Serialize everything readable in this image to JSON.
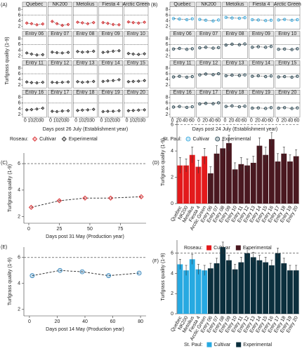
{
  "chart_data": [
    {
      "type": "facet-line",
      "tag": "(A)",
      "y_label": "Turfgrass quality (1-9)",
      "x_label": "Days post 26 July (Establishment year)",
      "x": [
        3,
        12,
        22,
        33
      ],
      "xlim": [
        -5,
        40
      ],
      "xticks": [
        0,
        10,
        20,
        30
      ],
      "ylim": [
        1,
        9
      ],
      "yticks": [
        2,
        4,
        6,
        8
      ],
      "reference_line": 6,
      "legend_title": "Roseau:",
      "marker": "diamond",
      "series": [
        {
          "name": "Cultivar",
          "color": "#d7191c",
          "facets": [
            {
              "name": "Quebec",
              "values": [
                3.2,
                3.0,
                2.6,
                2.9
              ]
            },
            {
              "name": "NK200",
              "values": [
                3.8,
                3.0,
                2.4,
                2.7
              ]
            },
            {
              "name": "Metolius",
              "values": [
                3.5,
                3.3,
                3.0,
                3.4
              ]
            },
            {
              "name": "Fiesta 4",
              "values": [
                3.4,
                3.1,
                2.7,
                2.6
              ]
            },
            {
              "name": "Arctic Green",
              "values": [
                3.6,
                3.4,
                3.2,
                3.5
              ]
            }
          ]
        },
        {
          "name": "Experimental",
          "color": "#1a1a1a",
          "facets": [
            {
              "name": "Entry 06",
              "values": [
                3.0,
                2.6,
                2.3,
                2.4
              ]
            },
            {
              "name": "Entry 07",
              "values": [
                3.3,
                3.1,
                3.0,
                3.2
              ]
            },
            {
              "name": "Entry 08",
              "values": [
                3.5,
                3.3,
                3.4,
                3.6
              ]
            },
            {
              "name": "Entry 09",
              "values": [
                3.2,
                3.4,
                3.6,
                3.8
              ]
            },
            {
              "name": "Entry 10",
              "values": [
                2.8,
                2.6,
                2.5,
                2.7
              ]
            },
            {
              "name": "Entry 11",
              "values": [
                3.1,
                2.9,
                2.8,
                3.0
              ]
            },
            {
              "name": "Entry 12",
              "values": [
                3.0,
                2.9,
                3.0,
                3.1
              ]
            },
            {
              "name": "Entry 13",
              "values": [
                3.2,
                3.0,
                3.1,
                3.3
              ]
            },
            {
              "name": "Entry 14",
              "values": [
                3.3,
                3.5,
                3.6,
                3.9
              ]
            },
            {
              "name": "Entry 15",
              "values": [
                3.2,
                3.3,
                3.4,
                3.6
              ]
            },
            {
              "name": "Entry 16",
              "values": [
                3.6,
                3.7,
                3.9,
                4.2
              ]
            },
            {
              "name": "Entry 17",
              "values": [
                3.1,
                3.0,
                3.2,
                3.3
              ]
            },
            {
              "name": "Entry 18",
              "values": [
                3.4,
                3.5,
                3.6,
                3.8
              ]
            },
            {
              "name": "Entry 19",
              "values": [
                3.0,
                3.1,
                3.1,
                3.3
              ]
            },
            {
              "name": "Entry 20",
              "values": [
                3.3,
                3.4,
                3.5,
                3.6
              ]
            }
          ]
        }
      ]
    },
    {
      "type": "facet-line",
      "tag": "(B)",
      "x_label": "Days post 24 July (Establishment year)",
      "x": [
        3,
        22,
        45,
        62
      ],
      "xlim": [
        -8,
        70
      ],
      "xticks": [
        0,
        20,
        40,
        60
      ],
      "ylim": [
        1,
        9
      ],
      "yticks": [
        2,
        4,
        6,
        8
      ],
      "reference_line": 6,
      "legend_title": "St. Paul:",
      "marker": "circle",
      "series": [
        {
          "name": "Cultivar",
          "color": "#29a3dd",
          "facets": [
            {
              "name": "Quebec",
              "values": [
                4.8,
                4.6,
                4.4,
                4.7
              ]
            },
            {
              "name": "NK200",
              "values": [
                4.5,
                4.2,
                4.0,
                4.3
              ]
            },
            {
              "name": "Metolius",
              "values": [
                5.2,
                5.0,
                4.9,
                5.1
              ]
            },
            {
              "name": "Fiesta 4",
              "values": [
                4.4,
                4.3,
                4.1,
                4.2
              ]
            },
            {
              "name": "Arctic Green",
              "values": [
                4.3,
                4.5,
                4.2,
                4.4
              ]
            }
          ]
        },
        {
          "name": "Experimental",
          "color": "#1b3a47",
          "facets": [
            {
              "name": "Entry 06",
              "values": [
                4.4,
                4.6,
                4.3,
                4.5
              ]
            },
            {
              "name": "Entry 07",
              "values": [
                4.8,
                5.0,
                4.7,
                4.9
              ]
            },
            {
              "name": "Entry 08",
              "values": [
                5.8,
                6.1,
                5.9,
                6.2
              ]
            },
            {
              "name": "Entry 09",
              "values": [
                5.0,
                5.2,
                5.0,
                5.3
              ]
            },
            {
              "name": "Entry 10",
              "values": [
                4.3,
                4.4,
                4.2,
                4.5
              ]
            },
            {
              "name": "Entry 11",
              "values": [
                4.9,
                5.1,
                4.8,
                5.0
              ]
            },
            {
              "name": "Entry 12",
              "values": [
                5.6,
                5.9,
                5.7,
                6.0
              ]
            },
            {
              "name": "Entry 13",
              "values": [
                5.3,
                5.5,
                5.4,
                5.6
              ]
            },
            {
              "name": "Entry 14",
              "values": [
                5.1,
                5.3,
                5.0,
                5.2
              ]
            },
            {
              "name": "Entry 15",
              "values": [
                4.9,
                5.0,
                4.8,
                5.1
              ]
            },
            {
              "name": "Entry 16",
              "values": [
                4.6,
                4.8,
                4.5,
                4.7
              ]
            },
            {
              "name": "Entry 17",
              "values": [
                5.7,
                5.9,
                5.8,
                6.1
              ]
            },
            {
              "name": "Entry 18",
              "values": [
                4.8,
                5.0,
                4.7,
                4.9
              ]
            },
            {
              "name": "Entry 19",
              "values": [
                4.2,
                4.3,
                4.1,
                4.4
              ]
            },
            {
              "name": "Entry 20",
              "values": [
                4.2,
                4.4,
                4.1,
                4.3
              ]
            }
          ]
        }
      ]
    },
    {
      "type": "line",
      "tag": "(C)",
      "y_label": "Turfgrass quality (1-9)",
      "x_label": "Days post 31 May (Production year)",
      "x": [
        2,
        25,
        46,
        67,
        92
      ],
      "values": [
        2.7,
        3.2,
        3.4,
        3.4,
        3.5
      ],
      "color": "#d7191c",
      "marker": "diamond",
      "xlim": [
        -4,
        96
      ],
      "xticks": [
        0,
        25,
        50,
        75
      ],
      "ylim": [
        1.5,
        6.8
      ],
      "yticks": [
        2,
        4,
        6
      ],
      "reference_line": 6
    },
    {
      "type": "bar",
      "tag": "(D)",
      "y_label": "Turfgrass quality (1-9)",
      "legend_title": "Roseau:",
      "categories": [
        "Quebec",
        "NK200",
        "Metolius",
        "Fiesta 4",
        "Arctic Green",
        "Entry 06",
        "Entry 07",
        "Entry 08",
        "Entry 09",
        "Entry 10",
        "Entry 11",
        "Entry 12",
        "Entry 13",
        "Entry 14",
        "Entry 15",
        "Entry 16",
        "Entry 17",
        "Entry 18",
        "Entry 19",
        "Entry 20"
      ],
      "ylim": [
        0,
        6.3
      ],
      "yticks": [
        0,
        2,
        4,
        6
      ],
      "reference_line": 6,
      "series": [
        {
          "name": "Cultivar",
          "color": "#e31a1c",
          "values": [
            2.9,
            2.9,
            3.7,
            2.8,
            3.6,
            null,
            null,
            null,
            null,
            null,
            null,
            null,
            null,
            null,
            null,
            null,
            null,
            null,
            null,
            null
          ],
          "errors": [
            0.6,
            0.5,
            0.6,
            0.5,
            0.6,
            null,
            null,
            null,
            null,
            null,
            null,
            null,
            null,
            null,
            null,
            null,
            null,
            null,
            null,
            null
          ]
        },
        {
          "name": "Experimental",
          "color": "#4a1820",
          "values": [
            null,
            null,
            null,
            null,
            null,
            2.3,
            3.8,
            4.2,
            4.6,
            2.6,
            3.0,
            2.9,
            3.1,
            4.4,
            3.7,
            4.9,
            3.2,
            3.8,
            3.2,
            3.6
          ],
          "errors": [
            null,
            null,
            null,
            null,
            null,
            0.5,
            0.6,
            0.6,
            0.6,
            0.5,
            0.5,
            0.5,
            0.5,
            0.6,
            0.6,
            0.5,
            0.6,
            0.5,
            0.5,
            0.5
          ]
        }
      ]
    },
    {
      "type": "line",
      "tag": "(E)",
      "y_label": "Turfgrass quality (1-9)",
      "x_label": "Days post 14 May (Production year)",
      "x": [
        2,
        22,
        38,
        57,
        79
      ],
      "values": [
        4.6,
        5.0,
        4.9,
        4.6,
        4.8
      ],
      "color": "#2c7fb8",
      "marker": "circle",
      "xlim": [
        -4,
        84
      ],
      "xticks": [
        0,
        20,
        40,
        60,
        80
      ],
      "ylim": [
        1.5,
        6.8
      ],
      "yticks": [
        2,
        4,
        6
      ],
      "reference_line": 6
    },
    {
      "type": "bar",
      "tag": "(F)",
      "y_label": "Turfgrass quality (1-9)",
      "legend_title": "St. Paul:",
      "categories": [
        "Quebec",
        "NK200",
        "Metolius",
        "Fiesta 4",
        "Arctic Green",
        "Entry 06",
        "Entry 07",
        "Entry 08",
        "Entry 09",
        "Entry 10",
        "Entry 11",
        "Entry 12",
        "Entry 13",
        "Entry 14",
        "Entry 15",
        "Entry 16",
        "Entry 17",
        "Entry 18",
        "Entry 19",
        "Entry 20"
      ],
      "ylim": [
        0,
        7.3
      ],
      "yticks": [
        0,
        2,
        4,
        6
      ],
      "reference_line": 6,
      "series": [
        {
          "name": "Cultivar",
          "color": "#27a9e1",
          "values": [
            4.9,
            4.3,
            5.4,
            4.4,
            4.3,
            null,
            null,
            null,
            null,
            null,
            null,
            null,
            null,
            null,
            null,
            null,
            null,
            null,
            null,
            null
          ],
          "errors": [
            0.5,
            0.5,
            0.5,
            0.5,
            0.5,
            null,
            null,
            null,
            null,
            null,
            null,
            null,
            null,
            null,
            null,
            null,
            null,
            null,
            null,
            null
          ]
        },
        {
          "name": "Experimental",
          "color": "#0b2f3d",
          "values": [
            null,
            null,
            null,
            null,
            null,
            4.5,
            5.0,
            6.6,
            5.3,
            4.4,
            5.1,
            6.0,
            5.6,
            5.3,
            5.1,
            4.8,
            6.0,
            5.0,
            4.3,
            4.3
          ],
          "errors": [
            null,
            null,
            null,
            null,
            null,
            0.5,
            0.5,
            0.5,
            0.5,
            0.5,
            0.5,
            0.5,
            0.5,
            0.5,
            0.5,
            0.5,
            0.5,
            0.5,
            0.5,
            0.5
          ]
        }
      ]
    }
  ]
}
